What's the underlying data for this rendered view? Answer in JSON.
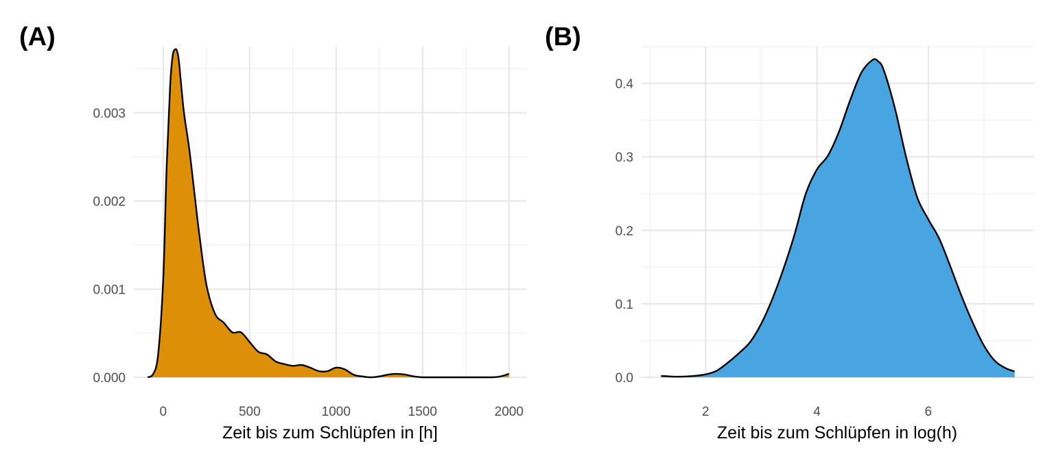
{
  "chart_data": [
    {
      "panel": "(A)",
      "type": "area",
      "xlabel": "Zeit bis zum Schlüpfen in [h]",
      "ylabel": "",
      "fill": "#DE8F08",
      "xlim": [
        -170,
        2100
      ],
      "ylim": [
        0,
        0.00375
      ],
      "xticks": [
        0,
        500,
        1000,
        1500,
        2000
      ],
      "yticks": [
        0.0,
        0.001,
        0.002,
        0.003
      ],
      "ytick_labels": [
        "0.000",
        "0.001",
        "0.002",
        "0.003"
      ],
      "grid": true,
      "x": [
        -90,
        -60,
        -30,
        0,
        20,
        40,
        55,
        70,
        80,
        90,
        100,
        120,
        150,
        180,
        210,
        250,
        300,
        350,
        400,
        450,
        500,
        550,
        600,
        650,
        700,
        750,
        800,
        850,
        900,
        950,
        1000,
        1050,
        1100,
        1150,
        1200,
        1250,
        1300,
        1350,
        1400,
        1450,
        1500,
        1600,
        1700,
        1800,
        1900,
        1950,
        2000
      ],
      "y": [
        0.0,
        3e-05,
        0.00025,
        0.0011,
        0.0024,
        0.0033,
        0.00365,
        0.00372,
        0.0037,
        0.0036,
        0.0034,
        0.003,
        0.0026,
        0.0021,
        0.0016,
        0.00105,
        0.00072,
        0.00062,
        0.00051,
        0.00051,
        0.0004,
        0.00029,
        0.00026,
        0.00018,
        0.00015,
        0.00013,
        0.00014,
        0.00011,
        7e-05,
        7e-05,
        0.00011,
        9e-05,
        3e-05,
        1e-05,
        0.0,
        1e-05,
        3e-05,
        4e-05,
        3e-05,
        1e-05,
        0.0,
        0.0,
        0.0,
        0.0,
        0.0,
        1e-05,
        4e-05
      ]
    },
    {
      "panel": "(B)",
      "type": "area",
      "xlabel": "Zeit bis zum Schlüpfen in log(h)",
      "ylabel": "",
      "fill": "#49A4E2",
      "xlim": [
        0.85,
        7.9
      ],
      "ylim": [
        0,
        0.45
      ],
      "xticks": [
        2,
        4,
        6
      ],
      "yticks": [
        0.0,
        0.1,
        0.2,
        0.3,
        0.4
      ],
      "ytick_labels": [
        "0.0",
        "0.1",
        "0.2",
        "0.3",
        "0.4"
      ],
      "grid": true,
      "x": [
        1.2,
        1.4,
        1.6,
        1.8,
        2.0,
        2.2,
        2.4,
        2.6,
        2.8,
        3.0,
        3.2,
        3.4,
        3.6,
        3.8,
        4.0,
        4.2,
        4.4,
        4.6,
        4.8,
        5.0,
        5.1,
        5.2,
        5.4,
        5.6,
        5.8,
        6.0,
        6.2,
        6.4,
        6.6,
        6.8,
        7.0,
        7.2,
        7.4,
        7.55
      ],
      "y": [
        0.002,
        0.001,
        0.001,
        0.002,
        0.004,
        0.009,
        0.02,
        0.033,
        0.048,
        0.073,
        0.107,
        0.148,
        0.195,
        0.25,
        0.283,
        0.302,
        0.335,
        0.378,
        0.415,
        0.432,
        0.43,
        0.418,
        0.366,
        0.3,
        0.245,
        0.215,
        0.188,
        0.15,
        0.11,
        0.074,
        0.043,
        0.022,
        0.012,
        0.008
      ]
    }
  ]
}
